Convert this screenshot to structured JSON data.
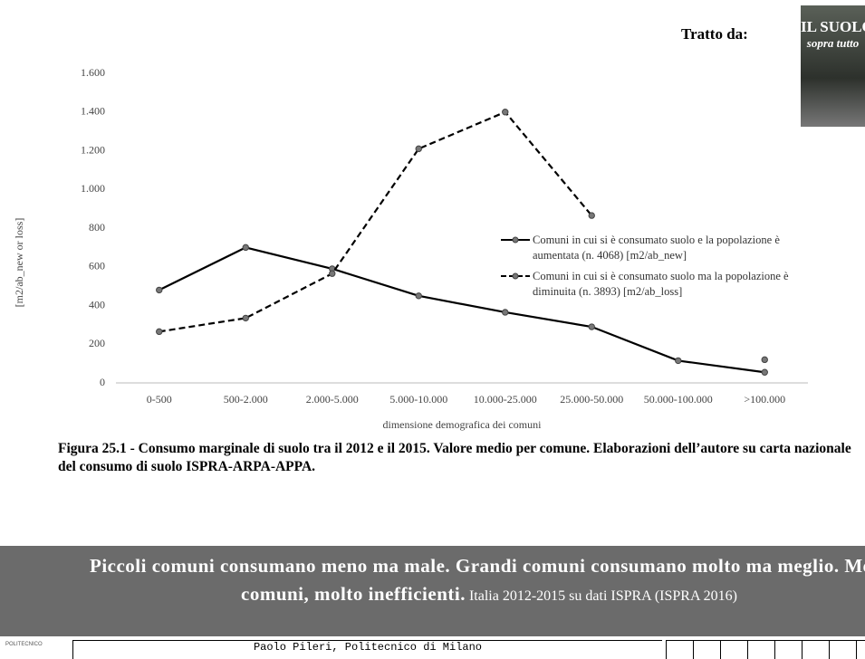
{
  "source_label": "Tratto da:",
  "book_cover": {
    "title": "IL SUOLO",
    "subtitle": "sopra tutto"
  },
  "chart_data": {
    "type": "line",
    "y_label": "[m2/ab_new or loss]",
    "x_label": "dimensione demografica dei comuni",
    "categories": [
      "0-500",
      "500-2.000",
      "2.000-5.000",
      "5.000-10.000",
      "10.000-25.000",
      "25.000-50.000",
      "50.000-100.000",
      ">100.000"
    ],
    "series": [
      {
        "name": "Comuni in cui si è consumato suolo e la popolazione è aumentata (n. 4068) [m2/ab_new]",
        "color": "#000000",
        "dash": "solid",
        "values": [
          480,
          700,
          590,
          450,
          365,
          290,
          115,
          55
        ]
      },
      {
        "name": "Comuni in cui si è consumato suolo ma la popolazione è diminuita (n. 3893) [m2/ab_loss]",
        "color": "#000000",
        "dash": "dashed",
        "values": [
          265,
          335,
          565,
          1210,
          1400,
          865,
          null,
          120
        ]
      }
    ],
    "ylim": [
      0,
      1600
    ],
    "yticks": [
      0,
      200,
      400,
      600,
      800,
      {
        "value": 1000,
        "label": "1.000"
      },
      {
        "value": 1200,
        "label": "1.200"
      },
      {
        "value": 1400,
        "label": "1.400"
      },
      {
        "value": 1600,
        "label": "1.600"
      }
    ],
    "grid": false
  },
  "caption": "Figura 25.1 - Consumo marginale di suolo tra il 2012 e il 2015. Valore medio per comune. Elaborazioni dell’autore su carta nazionale del consumo di suolo ISPRA-ARPA-APPA.",
  "banner": {
    "headline": "Piccoli comuni consumano meno ma male. Grandi comuni consumano molto ma meglio. Medi comuni, molto inefficienti.",
    "source": "Italia 2012-2015 su dati ISPRA (ISPRA 2016)"
  },
  "footer": {
    "logo": "POLITECNICO",
    "author": "Paolo Pileri, Politecnico di Milano"
  }
}
